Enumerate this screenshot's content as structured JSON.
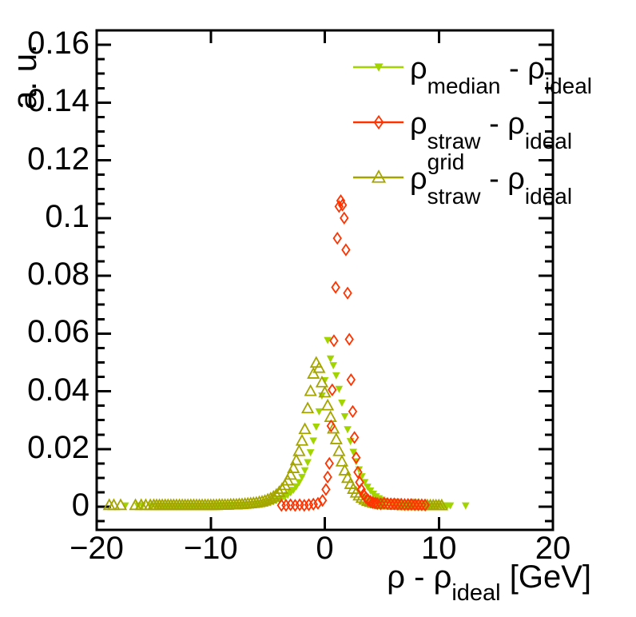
{
  "figure": {
    "background": "#ffffff",
    "frame_color": "#000000",
    "axes": {
      "x": {
        "title_pre": "ρ - ρ",
        "title_sub": "ideal",
        "title_post": " [GeV]",
        "min": -20,
        "max": 20,
        "tick_values": [
          -20,
          -10,
          0,
          10,
          20
        ],
        "tick_labels": [
          "−20",
          "−10",
          "0",
          "10",
          "20"
        ]
      },
      "y": {
        "title": "a. u.",
        "min": -0.008,
        "max": 0.165,
        "tick_values": [
          0,
          0.02,
          0.04,
          0.06,
          0.08,
          0.1,
          0.12,
          0.14,
          0.16
        ],
        "tick_labels": [
          "0",
          "0.02",
          "0.04",
          "0.06",
          "0.08",
          "0.1",
          "0.12",
          "0.14",
          "0.16"
        ],
        "minor_step": 0.005
      }
    },
    "legend": {
      "entries": [
        {
          "pre": "ρ",
          "sup": "",
          "sub": "median",
          "mid": " - ρ",
          "sub2": "ideal",
          "marker": "triangle-down-filled",
          "color": "#a2d400",
          "label_plain": "rho_median - rho_ideal"
        },
        {
          "pre": "ρ",
          "sup": "",
          "sub": "straw",
          "mid": " - ρ",
          "sub2": "ideal",
          "marker": "diamond-open",
          "color": "#ff3300",
          "label_plain": "rho_straw - rho_ideal"
        },
        {
          "pre": "ρ",
          "sup": "grid",
          "sub": "straw",
          "mid": " - ρ",
          "sub2": "ideal",
          "marker": "triangle-up-open",
          "color": "#a5a500",
          "label_plain": "rho_straw^grid - rho_ideal"
        }
      ]
    }
  },
  "chart_data": {
    "type": "scatter",
    "title": "",
    "xlabel": "ρ - ρ_ideal [GeV]",
    "ylabel": "a. u.",
    "xlim": [
      -20,
      20
    ],
    "ylim": [
      -0.008,
      0.165
    ],
    "grid": false,
    "legend_position": "top-right-inside",
    "draw_order": [
      0,
      2,
      1
    ],
    "series": [
      {
        "name": "rho_median - rho_ideal",
        "marker": "triangle-down-filled",
        "color": "#a2d400",
        "points": [
          [
            -17.5,
            0.0004
          ],
          [
            -16.4,
            0.0004
          ],
          [
            -16.0,
            0.0004
          ],
          [
            -15.2,
            0.0004
          ],
          [
            -14.75,
            0.0004
          ],
          [
            -14.5,
            0.0004
          ],
          [
            -14.25,
            0.0004
          ],
          [
            -14,
            0.0004
          ],
          [
            -13.75,
            0.0004
          ],
          [
            -13.5,
            0.0004
          ],
          [
            -13.25,
            0.0004
          ],
          [
            -13,
            0.0004
          ],
          [
            -12.75,
            0.0004
          ],
          [
            -12.5,
            0.0004
          ],
          [
            -12.25,
            0.0004
          ],
          [
            -12,
            0.0004
          ],
          [
            -11.75,
            0.0004
          ],
          [
            -11.5,
            0.0004
          ],
          [
            -11.25,
            0.0004
          ],
          [
            -11,
            0.0004
          ],
          [
            -10.75,
            0.0004
          ],
          [
            -10.5,
            0.0004
          ],
          [
            -10.25,
            0.0004
          ],
          [
            -10,
            0.0004
          ],
          [
            -9.75,
            0.0004
          ],
          [
            -9.5,
            0.0005
          ],
          [
            -9.25,
            0.0004
          ],
          [
            -9,
            0.0005
          ],
          [
            -8.75,
            0.0005
          ],
          [
            -8.5,
            0.0005
          ],
          [
            -8.25,
            0.0005
          ],
          [
            -8,
            0.0006
          ],
          [
            -7.75,
            0.0006
          ],
          [
            -7.5,
            0.0006
          ],
          [
            -7.25,
            0.0007
          ],
          [
            -7,
            0.0007
          ],
          [
            -6.75,
            0.0008
          ],
          [
            -6.5,
            0.0008
          ],
          [
            -6.25,
            0.0009
          ],
          [
            -6,
            0.001
          ],
          [
            -5.75,
            0.0011
          ],
          [
            -5.5,
            0.0012
          ],
          [
            -5.25,
            0.0013
          ],
          [
            -5,
            0.0015
          ],
          [
            -4.75,
            0.0017
          ],
          [
            -4.5,
            0.0019
          ],
          [
            -4.25,
            0.0022
          ],
          [
            -4,
            0.0026
          ],
          [
            -3.75,
            0.003
          ],
          [
            -3.5,
            0.0035
          ],
          [
            -3.25,
            0.0041
          ],
          [
            -3,
            0.0049
          ],
          [
            -2.75,
            0.0058
          ],
          [
            -2.5,
            0.007
          ],
          [
            -2.25,
            0.0085
          ],
          [
            -2,
            0.0103
          ],
          [
            -1.75,
            0.0126
          ],
          [
            -1.5,
            0.0154
          ],
          [
            -1.25,
            0.0188
          ],
          [
            -1,
            0.0229
          ],
          [
            -0.75,
            0.0277
          ],
          [
            -0.5,
            0.033
          ],
          [
            -0.25,
            0.0385
          ],
          [
            0,
            0.0438
          ],
          [
            0.25,
            0.0577
          ],
          [
            0.5,
            0.0513
          ],
          [
            0.75,
            0.049
          ],
          [
            1,
            0.0455
          ],
          [
            1.25,
            0.0408
          ],
          [
            1.5,
            0.036
          ],
          [
            1.75,
            0.0313
          ],
          [
            2,
            0.0268
          ],
          [
            2.25,
            0.0227
          ],
          [
            2.5,
            0.019
          ],
          [
            2.75,
            0.0157
          ],
          [
            3,
            0.0129
          ],
          [
            3.25,
            0.0105
          ],
          [
            3.5,
            0.0085
          ],
          [
            3.75,
            0.0069
          ],
          [
            4,
            0.0056
          ],
          [
            4.25,
            0.0045
          ],
          [
            4.5,
            0.0036
          ],
          [
            4.75,
            0.0029
          ],
          [
            5,
            0.0024
          ],
          [
            5.25,
            0.002
          ],
          [
            5.5,
            0.0016
          ],
          [
            5.75,
            0.0014
          ],
          [
            6,
            0.0012
          ],
          [
            6.25,
            0.001
          ],
          [
            6.5,
            0.0009
          ],
          [
            6.75,
            0.0008
          ],
          [
            7,
            0.0007
          ],
          [
            7.25,
            0.0007
          ],
          [
            7.5,
            0.0006
          ],
          [
            7.75,
            0.0006
          ],
          [
            8,
            0.0005
          ],
          [
            8.25,
            0.0005
          ],
          [
            8.5,
            0.0005
          ],
          [
            8.75,
            0.0004
          ],
          [
            9,
            0.0004
          ],
          [
            9.25,
            0.0004
          ],
          [
            9.5,
            0.0004
          ],
          [
            9.75,
            0.0004
          ],
          [
            10,
            0.0004
          ],
          [
            10.25,
            0.0004
          ],
          [
            10.5,
            0.0004
          ],
          [
            10.75,
            0.0004
          ],
          [
            11,
            0.0004
          ],
          [
            12.35,
            0.0004
          ]
        ]
      },
      {
        "name": "rho_straw - rho_ideal",
        "marker": "diamond-open",
        "color": "#ff3300",
        "points": [
          [
            -3.8,
            0.0005
          ],
          [
            -3.4,
            0.0005
          ],
          [
            -3,
            0.0007
          ],
          [
            -2.6,
            0.0005
          ],
          [
            -2.2,
            0.0007
          ],
          [
            -1.8,
            0.0005
          ],
          [
            -1.4,
            0.0007
          ],
          [
            -1,
            0.0009
          ],
          [
            -0.6,
            0.0012
          ],
          [
            -0.2,
            0.0022
          ],
          [
            0.1,
            0.006
          ],
          [
            0.25,
            0.0103
          ],
          [
            0.4,
            0.015
          ],
          [
            0.55,
            0.028
          ],
          [
            0.65,
            0.0405
          ],
          [
            0.8,
            0.0575
          ],
          [
            0.95,
            0.076
          ],
          [
            1.1,
            0.093
          ],
          [
            1.25,
            0.104
          ],
          [
            1.4,
            0.106
          ],
          [
            1.55,
            0.1045
          ],
          [
            1.7,
            0.1
          ],
          [
            1.85,
            0.089
          ],
          [
            2,
            0.074
          ],
          [
            2.15,
            0.058
          ],
          [
            2.3,
            0.044
          ],
          [
            2.45,
            0.033
          ],
          [
            2.6,
            0.024
          ],
          [
            2.75,
            0.017
          ],
          [
            2.9,
            0.012
          ],
          [
            3.05,
            0.0085
          ],
          [
            3.2,
            0.006
          ],
          [
            3.4,
            0.0043
          ],
          [
            3.6,
            0.0032
          ],
          [
            3.8,
            0.0024
          ],
          [
            4,
            0.0019
          ],
          [
            4.2,
            0.0015
          ],
          [
            4.4,
            0.0013
          ],
          [
            4.6,
            0.0011
          ],
          [
            4.9,
            0.001
          ],
          [
            5.2,
            0.0012
          ],
          [
            5.5,
            0.0011
          ],
          [
            5.8,
            0.001
          ],
          [
            6.1,
            0.001
          ],
          [
            6.4,
            0.0009
          ],
          [
            6.7,
            0.0009
          ],
          [
            7,
            0.0008
          ],
          [
            7.3,
            0.0008
          ],
          [
            7.6,
            0.0008
          ],
          [
            7.9,
            0.0007
          ],
          [
            8.2,
            0.0007
          ],
          [
            8.5,
            0.0007
          ],
          [
            8.8,
            0.0006
          ]
        ]
      },
      {
        "name": "rho_straw^grid - rho_ideal",
        "marker": "triangle-up-open",
        "color": "#a5a500",
        "points": [
          [
            -18.9,
            0.0005
          ],
          [
            -18.5,
            0.0005
          ],
          [
            -17.9,
            0.0005
          ],
          [
            -16.6,
            0.0005
          ],
          [
            -16.1,
            0.0005
          ],
          [
            -15.7,
            0.0005
          ],
          [
            -15.3,
            0.0005
          ],
          [
            -15,
            0.0005
          ],
          [
            -14.75,
            0.0005
          ],
          [
            -14.5,
            0.0005
          ],
          [
            -14.25,
            0.0005
          ],
          [
            -14,
            0.0005
          ],
          [
            -13.75,
            0.0005
          ],
          [
            -13.5,
            0.0005
          ],
          [
            -13.25,
            0.0005
          ],
          [
            -13,
            0.0005
          ],
          [
            -12.75,
            0.0005
          ],
          [
            -12.5,
            0.0005
          ],
          [
            -12.25,
            0.0005
          ],
          [
            -12,
            0.0005
          ],
          [
            -11.75,
            0.0005
          ],
          [
            -11.5,
            0.0005
          ],
          [
            -11.25,
            0.0005
          ],
          [
            -11,
            0.0005
          ],
          [
            -10.75,
            0.0005
          ],
          [
            -10.5,
            0.0005
          ],
          [
            -10.25,
            0.0005
          ],
          [
            -10,
            0.0005
          ],
          [
            -9.75,
            0.0005
          ],
          [
            -9.5,
            0.0005
          ],
          [
            -9.25,
            0.0006
          ],
          [
            -9,
            0.0006
          ],
          [
            -8.75,
            0.0006
          ],
          [
            -8.5,
            0.0006
          ],
          [
            -8.25,
            0.0007
          ],
          [
            -8,
            0.0007
          ],
          [
            -7.75,
            0.0007
          ],
          [
            -7.5,
            0.0008
          ],
          [
            -7.25,
            0.0008
          ],
          [
            -7,
            0.0009
          ],
          [
            -6.75,
            0.001
          ],
          [
            -6.5,
            0.0011
          ],
          [
            -6.25,
            0.0012
          ],
          [
            -6,
            0.0013
          ],
          [
            -5.75,
            0.0015
          ],
          [
            -5.5,
            0.0017
          ],
          [
            -5.25,
            0.002
          ],
          [
            -5,
            0.0024
          ],
          [
            -4.75,
            0.0028
          ],
          [
            -4.5,
            0.0034
          ],
          [
            -4.25,
            0.0041
          ],
          [
            -4,
            0.005
          ],
          [
            -3.75,
            0.0061
          ],
          [
            -3.5,
            0.0074
          ],
          [
            -3.25,
            0.009
          ],
          [
            -3,
            0.011
          ],
          [
            -2.75,
            0.0133
          ],
          [
            -2.5,
            0.016
          ],
          [
            -2.25,
            0.0192
          ],
          [
            -2,
            0.0228
          ],
          [
            -1.75,
            0.0268
          ],
          [
            -1.5,
            0.034
          ],
          [
            -1.25,
            0.04
          ],
          [
            -1,
            0.046
          ],
          [
            -0.75,
            0.0498
          ],
          [
            -0.5,
            0.048
          ],
          [
            -0.25,
            0.043
          ],
          [
            0,
            0.0395
          ],
          [
            0.25,
            0.035
          ],
          [
            0.5,
            0.031
          ],
          [
            0.75,
            0.027
          ],
          [
            1,
            0.0233
          ],
          [
            1.25,
            0.0192
          ],
          [
            1.5,
            0.0156
          ],
          [
            1.75,
            0.0125
          ],
          [
            2,
            0.0099
          ],
          [
            2.25,
            0.0078
          ],
          [
            2.5,
            0.0061
          ],
          [
            2.75,
            0.0048
          ],
          [
            3,
            0.0038
          ],
          [
            3.25,
            0.003
          ],
          [
            3.5,
            0.0024
          ],
          [
            3.75,
            0.0019
          ],
          [
            4,
            0.0016
          ],
          [
            4.25,
            0.0013
          ],
          [
            4.5,
            0.0011
          ],
          [
            4.75,
            0.001
          ],
          [
            5,
            0.0009
          ],
          [
            5.25,
            0.0008
          ],
          [
            5.5,
            0.0007
          ],
          [
            5.75,
            0.0007
          ],
          [
            6,
            0.0006
          ],
          [
            6.25,
            0.0006
          ],
          [
            6.5,
            0.0006
          ],
          [
            6.75,
            0.0005
          ],
          [
            7,
            0.0005
          ],
          [
            7.25,
            0.0005
          ],
          [
            7.5,
            0.0005
          ],
          [
            7.75,
            0.0005
          ],
          [
            8,
            0.0005
          ],
          [
            8.25,
            0.0005
          ],
          [
            8.5,
            0.0004
          ],
          [
            8.75,
            0.0004
          ],
          [
            9,
            0.0004
          ],
          [
            9.25,
            0.0004
          ],
          [
            9.5,
            0.0004
          ],
          [
            9.75,
            0.0004
          ],
          [
            10,
            0.0004
          ],
          [
            10.25,
            0.0004
          ]
        ]
      }
    ]
  }
}
